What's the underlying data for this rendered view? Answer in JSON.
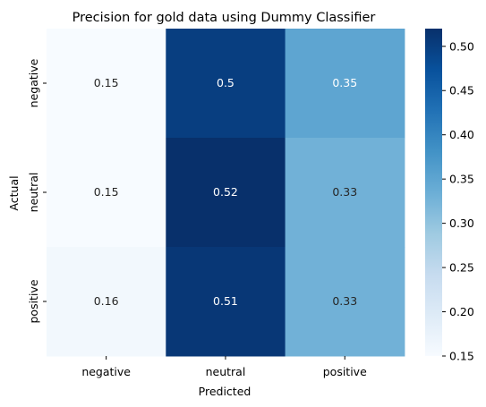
{
  "chart_data": {
    "type": "heatmap",
    "title": "Precision for gold data using Dummy Classifier",
    "xlabel": "Predicted",
    "ylabel": "Actual",
    "x_categories": [
      "negative",
      "neutral",
      "positive"
    ],
    "y_categories": [
      "negative",
      "neutral",
      "positive"
    ],
    "values": [
      [
        0.15,
        0.5,
        0.35
      ],
      [
        0.15,
        0.52,
        0.33
      ],
      [
        0.16,
        0.51,
        0.33
      ]
    ],
    "value_labels": [
      [
        "0.15",
        "0.5",
        "0.35"
      ],
      [
        "0.15",
        "0.52",
        "0.33"
      ],
      [
        "0.16",
        "0.51",
        "0.33"
      ]
    ],
    "colormap": "Blues",
    "vmin": 0.15,
    "vmax": 0.52,
    "colorbar_ticks": [
      0.15,
      0.2,
      0.25,
      0.3,
      0.35,
      0.4,
      0.45,
      0.5
    ],
    "colorbar_tick_labels": [
      "0.15",
      "0.20",
      "0.25",
      "0.30",
      "0.35",
      "0.40",
      "0.45",
      "0.50"
    ],
    "grid": false,
    "colorbar_position": "right"
  }
}
